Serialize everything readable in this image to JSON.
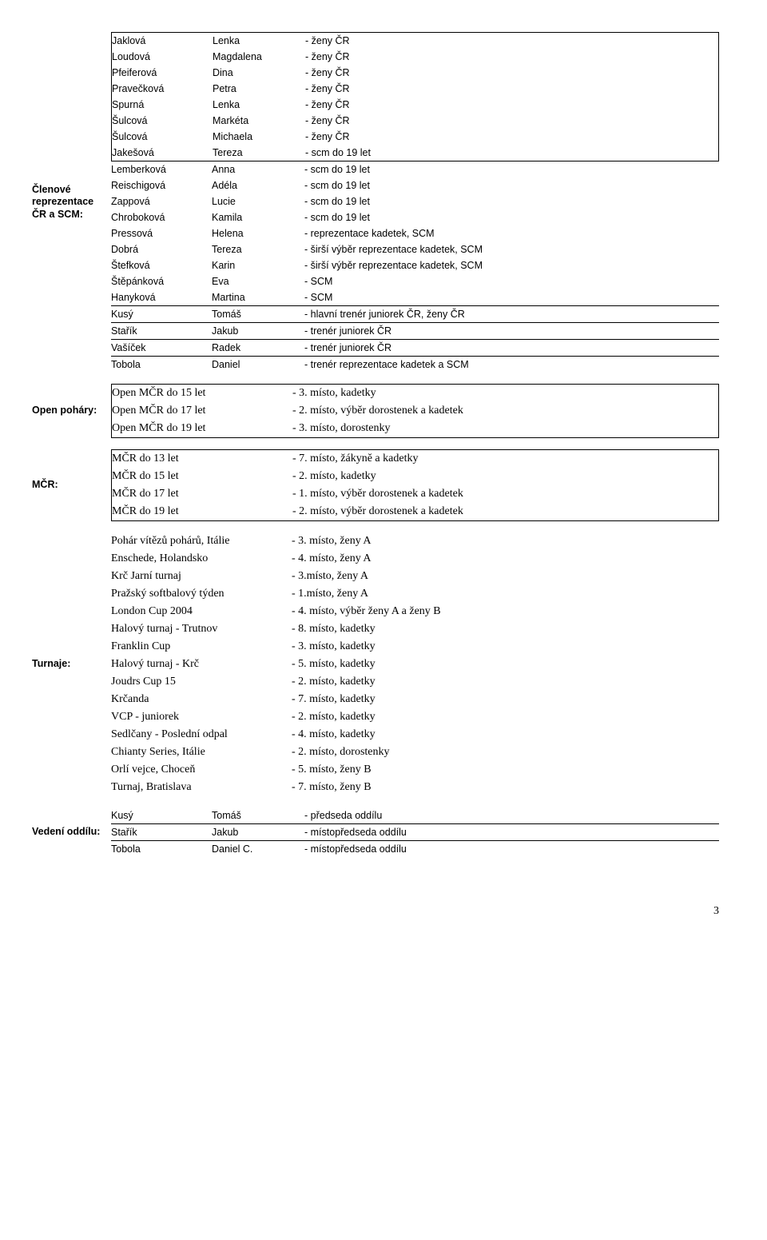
{
  "page_number": "3",
  "blocks": [
    {
      "label": "Členové reprezentace ČR a SCM:",
      "boxed_player_groups": [
        [
          {
            "surname": "Jaklová",
            "name": "Lenka",
            "role": "- ženy ČR"
          },
          {
            "surname": "Loudová",
            "name": "Magdalena",
            "role": "- ženy ČR"
          },
          {
            "surname": "Pfeiferová",
            "name": "Dina",
            "role": "- ženy ČR"
          },
          {
            "surname": "Pravečková",
            "name": "Petra",
            "role": "- ženy ČR"
          },
          {
            "surname": "Spurná",
            "name": "Lenka",
            "role": "- ženy ČR"
          },
          {
            "surname": "Šulcová",
            "name": "Markéta",
            "role": "- ženy ČR"
          },
          {
            "surname": "Šulcová",
            "name": "Michaela",
            "role": "- ženy ČR"
          },
          {
            "surname": "Jakešová",
            "name": "Tereza",
            "role": "- scm do 19 let"
          }
        ]
      ],
      "open_groups": [
        [
          {
            "surname": "Lemberková",
            "name": "Anna",
            "role": "- scm do 19 let"
          },
          {
            "surname": "Reischigová",
            "name": "Adéla",
            "role": "- scm do 19 let"
          },
          {
            "surname": "Zappová",
            "name": "Lucie",
            "role": "- scm do 19 let"
          },
          {
            "surname": "Chroboková",
            "name": "Kamila",
            "role": "- scm do 19 let"
          },
          {
            "surname": "Pressová",
            "name": "Helena",
            "role": "- reprezentace kadetek, SCM"
          },
          {
            "surname": "Dobrá",
            "name": "Tereza",
            "role": "- širší výběr reprezentace kadetek, SCM"
          },
          {
            "surname": "Štefková",
            "name": "Karin",
            "role": "- širší výběr reprezentace kadetek, SCM"
          },
          {
            "surname": "Štěpánková",
            "name": "Eva",
            "role": "- SCM"
          },
          {
            "surname": "Hanyková",
            "name": "Martina",
            "role": "- SCM"
          }
        ],
        [
          {
            "surname": "Kusý",
            "name": "Tomáš",
            "role": "- hlavní trenér juniorek ČR, ženy ČR"
          }
        ],
        [
          {
            "surname": "Stařík",
            "name": "Jakub",
            "role": "- trenér juniorek ČR"
          }
        ],
        [
          {
            "surname": "Vašíček",
            "name": "Radek",
            "role": "- trenér juniorek ČR"
          }
        ],
        [
          {
            "surname": "Tobola",
            "name": "Daniel",
            "role": "- trenér reprezentace kadetek a SCM"
          }
        ]
      ]
    },
    {
      "label": "Open poháry:",
      "boxed_item_groups": [
        [
          {
            "item": "Open MČR do 15 let",
            "result": "- 3. místo, kadetky"
          },
          {
            "item": "Open MČR do 17 let",
            "result": "- 2. místo, výběr dorostenek a kadetek"
          },
          {
            "item": "Open MČR do 19 let",
            "result": "- 3. místo, dorostenky"
          }
        ]
      ]
    },
    {
      "label": "MČR:",
      "boxed_item_groups": [
        [
          {
            "item": "MČR do 13 let",
            "result": "- 7. místo, žákyně a kadetky"
          },
          {
            "item": "MČR do 15 let",
            "result": "- 2. místo, kadetky"
          },
          {
            "item": "MČR do 17 let",
            "result": "- 1. místo, výběr dorostenek a kadetek"
          },
          {
            "item": "MČR do 19 let",
            "result": "- 2. místo, výběr dorostenek a kadetek"
          }
        ]
      ]
    },
    {
      "label": "Turnaje:",
      "open_item_groups": [
        [
          {
            "item": "Pohár vítězů pohárů, Itálie",
            "result": "- 3. místo, ženy A"
          },
          {
            "item": "Enschede, Holandsko",
            "result": "- 4. místo, ženy A"
          },
          {
            "item": "Krč Jarní turnaj",
            "result": "- 3.místo, ženy A"
          },
          {
            "item": "Pražský softbalový týden",
            "result": "- 1.místo, ženy A"
          },
          {
            "item": "London Cup 2004",
            "result": "- 4. místo, výběr ženy A a ženy B"
          },
          {
            "item": "Halový turnaj - Trutnov",
            "result": "- 8. místo, kadetky"
          },
          {
            "item": "Franklin Cup",
            "result": "- 3. místo, kadetky"
          },
          {
            "item": "Halový turnaj - Krč",
            "result": "- 5. místo, kadetky"
          },
          {
            "item": "Joudrs Cup 15",
            "result": "- 2. místo, kadetky"
          },
          {
            "item": "Krčanda",
            "result": "- 7. místo, kadetky"
          },
          {
            "item": "VCP - juniorek",
            "result": "- 2. místo, kadetky"
          },
          {
            "item": "Sedlčany - Poslední odpal",
            "result": "- 4. místo, kadetky"
          },
          {
            "item": "Chianty Series, Itálie",
            "result": "- 2. místo, dorostenky"
          },
          {
            "item": "Orlí vejce, Choceň",
            "result": "- 5. místo, ženy B"
          },
          {
            "item": "Turnaj, Bratislava",
            "result": "- 7. místo, ženy B"
          }
        ]
      ]
    },
    {
      "label": "Vedení oddílu:",
      "open_groups": [
        [
          {
            "surname": "Kusý",
            "name": "Tomáš",
            "role": "- předseda oddílu"
          }
        ],
        [
          {
            "surname": "Stařík",
            "name": "Jakub",
            "role": "- místopředseda oddílu"
          }
        ],
        [
          {
            "surname": "Tobola",
            "name": "Daniel C.",
            "role": "- místopředseda oddílu"
          }
        ]
      ]
    }
  ]
}
